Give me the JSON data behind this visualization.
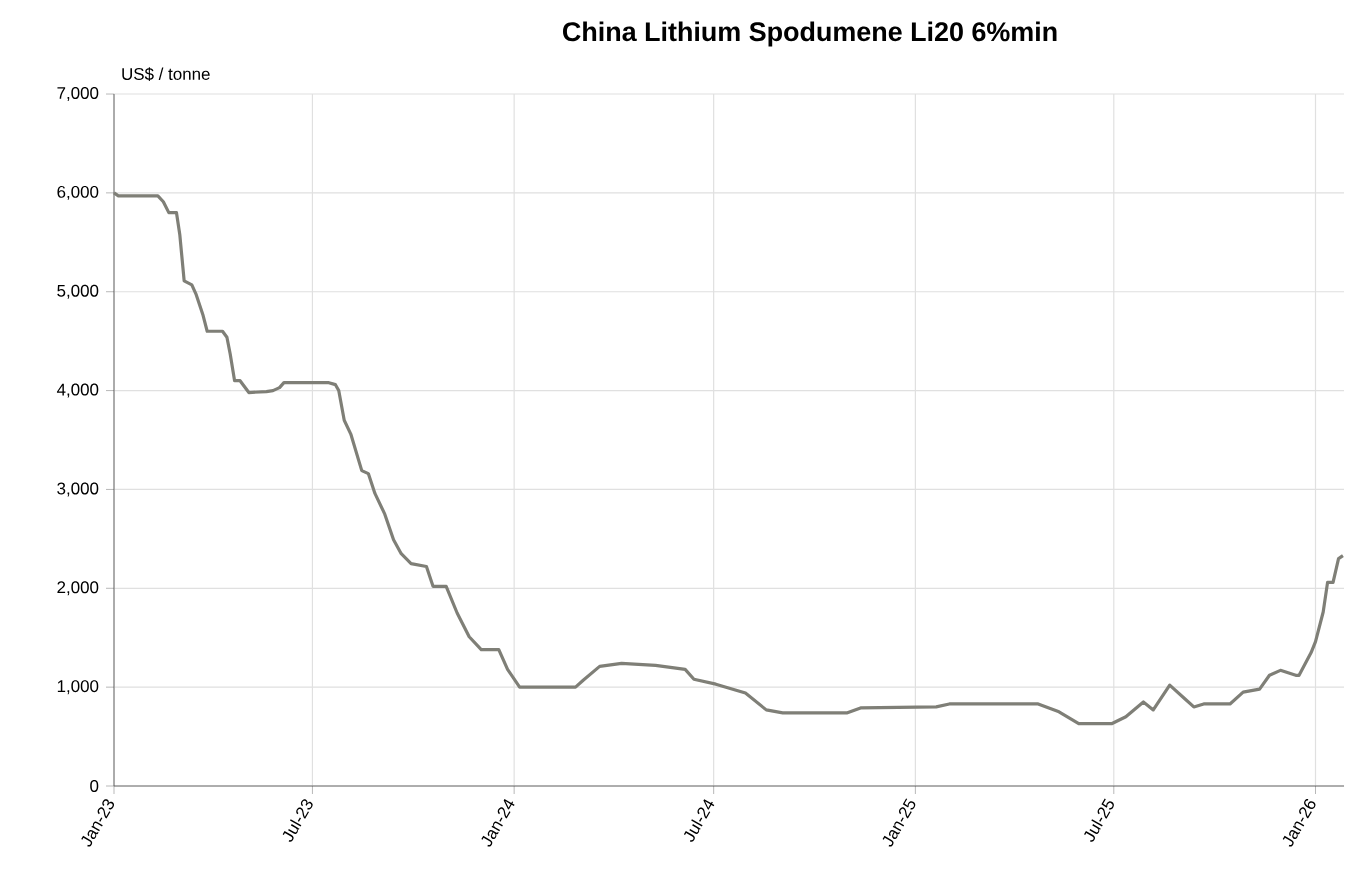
{
  "chart_data": {
    "type": "line",
    "title": "China Lithium Spodumene Li20 6%min",
    "ylabel": "US$ / tonne",
    "x": [
      "2023-01-01",
      "2023-01-05",
      "2023-02-10",
      "2023-02-15",
      "2023-02-20",
      "2023-02-27",
      "2023-03-02",
      "2023-03-06",
      "2023-03-13",
      "2023-03-17",
      "2023-03-23",
      "2023-03-27",
      "2023-04-10",
      "2023-04-14",
      "2023-04-17",
      "2023-04-21",
      "2023-04-26",
      "2023-05-04",
      "2023-05-20",
      "2023-05-26",
      "2023-06-01",
      "2023-06-05",
      "2023-07-16",
      "2023-07-22",
      "2023-07-25",
      "2023-07-30",
      "2023-08-05",
      "2023-08-15",
      "2023-08-21",
      "2023-08-27",
      "2023-09-05",
      "2023-09-13",
      "2023-09-20",
      "2023-09-29",
      "2023-10-13",
      "2023-10-19",
      "2023-10-31",
      "2023-11-10",
      "2023-11-21",
      "2023-12-02",
      "2023-12-18",
      "2023-12-26",
      "2024-01-06",
      "2024-02-26",
      "2024-03-04",
      "2024-03-19",
      "2024-04-08",
      "2024-05-09",
      "2024-06-05",
      "2024-06-13",
      "2024-07-03",
      "2024-07-30",
      "2024-08-18",
      "2024-09-02",
      "2024-10-31",
      "2024-11-12",
      "2025-01-20",
      "2025-02-01",
      "2025-04-23",
      "2025-05-12",
      "2025-05-30",
      "2025-06-29",
      "2025-07-12",
      "2025-07-28",
      "2025-08-06",
      "2025-08-21",
      "2025-09-04",
      "2025-09-12",
      "2025-09-21",
      "2025-10-15",
      "2025-10-27",
      "2025-11-11",
      "2025-11-20",
      "2025-11-30",
      "2025-12-14",
      "2025-12-17",
      "2025-12-28",
      "2026-01-01",
      "2026-01-08",
      "2026-01-12",
      "2026-01-17",
      "2026-01-22",
      "2026-01-26"
    ],
    "series": [
      {
        "color": "#7f7f77",
        "values": [
          6000,
          5970,
          5970,
          5910,
          5800,
          5800,
          5580,
          5110,
          5070,
          4970,
          4770,
          4600,
          4600,
          4540,
          4370,
          4100,
          4100,
          3980,
          3990,
          4000,
          4030,
          4080,
          4080,
          4060,
          4000,
          3700,
          3560,
          3190,
          3160,
          2960,
          2750,
          2490,
          2350,
          2250,
          2220,
          2020,
          2020,
          1750,
          1510,
          1380,
          1380,
          1180,
          1000,
          1000,
          1070,
          1210,
          1240,
          1220,
          1180,
          1080,
          1030,
          940,
          770,
          740,
          740,
          790,
          800,
          830,
          830,
          750,
          630,
          630,
          700,
          850,
          770,
          1020,
          880,
          800,
          830,
          830,
          950,
          980,
          1120,
          1170,
          1120,
          1120,
          1350,
          1460,
          1760,
          2060,
          2060,
          2300,
          2330
        ]
      }
    ],
    "xlim": [
      "2023-01-01",
      "2026-01-27"
    ],
    "xticks": [
      {
        "value": "2023-01-01",
        "label": "Jan-23"
      },
      {
        "value": "2023-07-01",
        "label": "Jul-23"
      },
      {
        "value": "2024-01-01",
        "label": "Jan-24"
      },
      {
        "value": "2024-07-01",
        "label": "Jul-24"
      },
      {
        "value": "2025-01-01",
        "label": "Jan-25"
      },
      {
        "value": "2025-07-01",
        "label": "Jul-25"
      },
      {
        "value": "2026-01-01",
        "label": "Jan-26"
      }
    ],
    "ylim": [
      0,
      7000
    ],
    "yticks": [
      {
        "value": 0,
        "label": "0"
      },
      {
        "value": 1000,
        "label": "1,000"
      },
      {
        "value": 2000,
        "label": "2,000"
      },
      {
        "value": 3000,
        "label": "3,000"
      },
      {
        "value": 4000,
        "label": "4,000"
      },
      {
        "value": 5000,
        "label": "5,000"
      },
      {
        "value": 6000,
        "label": "6,000"
      },
      {
        "value": 7000,
        "label": "7,000"
      }
    ],
    "grid": true,
    "line_style": "solid"
  }
}
